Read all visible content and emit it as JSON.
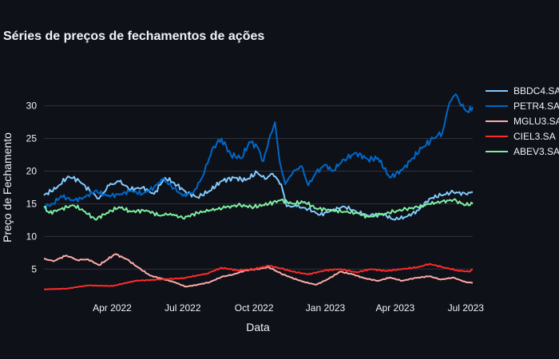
{
  "chart_data": {
    "type": "line",
    "title": "Séries de preços de fechamentos de ações",
    "xlabel": "Data",
    "ylabel": "Preço de Fechamento",
    "x_range": [
      "2022-01-03",
      "2023-07-10"
    ],
    "ylim": [
      1,
      34
    ],
    "x_ticks": [
      {
        "date": "2022-04-01",
        "label": "Apr 2022"
      },
      {
        "date": "2022-07-01",
        "label": "Jul 2022"
      },
      {
        "date": "2022-10-01",
        "label": "Oct 2022"
      },
      {
        "date": "2023-01-01",
        "label": "Jan 2023"
      },
      {
        "date": "2023-04-01",
        "label": "Apr 2023"
      },
      {
        "date": "2023-07-01",
        "label": "Jul 2023"
      }
    ],
    "y_ticks": [
      5,
      10,
      15,
      20,
      25,
      30
    ],
    "grid": true,
    "legend_position": "right",
    "series": [
      {
        "name": "BBDC4.SA",
        "color": "#83c9ff",
        "points": [
          [
            "2022-01-03",
            16.3
          ],
          [
            "2022-01-20",
            17.5
          ],
          [
            "2022-02-03",
            19.2
          ],
          [
            "2022-02-17",
            18.6
          ],
          [
            "2022-03-03",
            17.0
          ],
          [
            "2022-03-15",
            15.8
          ],
          [
            "2022-03-28",
            17.8
          ],
          [
            "2022-04-10",
            18.4
          ],
          [
            "2022-04-25",
            17.2
          ],
          [
            "2022-05-10",
            17.5
          ],
          [
            "2022-05-25",
            16.5
          ],
          [
            "2022-06-08",
            19.0
          ],
          [
            "2022-06-20",
            18.2
          ],
          [
            "2022-07-05",
            16.8
          ],
          [
            "2022-07-20",
            16.0
          ],
          [
            "2022-08-05",
            17.0
          ],
          [
            "2022-08-20",
            18.5
          ],
          [
            "2022-09-05",
            19.0
          ],
          [
            "2022-09-20",
            18.6
          ],
          [
            "2022-10-05",
            19.8
          ],
          [
            "2022-10-15",
            18.8
          ],
          [
            "2022-10-25",
            19.6
          ],
          [
            "2022-11-05",
            18.0
          ],
          [
            "2022-11-12",
            14.6
          ],
          [
            "2022-11-25",
            14.6
          ],
          [
            "2022-12-10",
            14.2
          ],
          [
            "2022-12-25",
            13.3
          ],
          [
            "2023-01-10",
            14.0
          ],
          [
            "2023-01-25",
            14.6
          ],
          [
            "2023-02-10",
            13.8
          ],
          [
            "2023-02-25",
            13.2
          ],
          [
            "2023-03-15",
            13.5
          ],
          [
            "2023-03-30",
            12.6
          ],
          [
            "2023-04-15",
            13.0
          ],
          [
            "2023-05-01",
            14.0
          ],
          [
            "2023-05-15",
            15.8
          ],
          [
            "2023-05-30",
            16.3
          ],
          [
            "2023-06-15",
            16.8
          ],
          [
            "2023-07-01",
            16.5
          ],
          [
            "2023-07-10",
            16.8
          ]
        ]
      },
      {
        "name": "PETR4.SA",
        "color": "#0068c9",
        "points": [
          [
            "2022-01-03",
            14.5
          ],
          [
            "2022-01-15",
            15.0
          ],
          [
            "2022-01-25",
            16.2
          ],
          [
            "2022-02-10",
            15.5
          ],
          [
            "2022-02-25",
            16.0
          ],
          [
            "2022-03-10",
            17.0
          ],
          [
            "2022-03-25",
            16.2
          ],
          [
            "2022-04-10",
            16.4
          ],
          [
            "2022-04-25",
            17.0
          ],
          [
            "2022-05-10",
            16.5
          ],
          [
            "2022-05-25",
            17.5
          ],
          [
            "2022-06-05",
            18.8
          ],
          [
            "2022-06-20",
            17.4
          ],
          [
            "2022-07-01",
            16.2
          ],
          [
            "2022-07-15",
            16.8
          ],
          [
            "2022-07-25",
            18.8
          ],
          [
            "2022-08-10",
            23.8
          ],
          [
            "2022-08-20",
            25.0
          ],
          [
            "2022-09-01",
            22.5
          ],
          [
            "2022-09-15",
            22.0
          ],
          [
            "2022-09-25",
            24.5
          ],
          [
            "2022-10-05",
            23.8
          ],
          [
            "2022-10-13",
            21.5
          ],
          [
            "2022-10-20",
            24.8
          ],
          [
            "2022-10-28",
            27.5
          ],
          [
            "2022-11-03",
            21.5
          ],
          [
            "2022-11-10",
            18.0
          ],
          [
            "2022-11-20",
            19.8
          ],
          [
            "2022-12-01",
            20.8
          ],
          [
            "2022-12-10",
            17.8
          ],
          [
            "2022-12-20",
            19.8
          ],
          [
            "2023-01-01",
            21.0
          ],
          [
            "2023-01-10",
            20.0
          ],
          [
            "2023-01-25",
            21.8
          ],
          [
            "2023-02-10",
            22.8
          ],
          [
            "2023-02-25",
            21.8
          ],
          [
            "2023-03-10",
            22.0
          ],
          [
            "2023-03-25",
            19.0
          ],
          [
            "2023-04-10",
            20.2
          ],
          [
            "2023-04-20",
            21.5
          ],
          [
            "2023-05-05",
            23.5
          ],
          [
            "2023-05-20",
            25.0
          ],
          [
            "2023-06-01",
            26.0
          ],
          [
            "2023-06-10",
            30.5
          ],
          [
            "2023-06-18",
            31.8
          ],
          [
            "2023-06-25",
            30.0
          ],
          [
            "2023-07-05",
            29.0
          ],
          [
            "2023-07-10",
            29.8
          ]
        ]
      },
      {
        "name": "MGLU3.SA",
        "color": "#ffabab",
        "points": [
          [
            "2022-01-03",
            6.6
          ],
          [
            "2022-01-15",
            6.2
          ],
          [
            "2022-02-01",
            7.1
          ],
          [
            "2022-02-15",
            6.4
          ],
          [
            "2022-03-01",
            6.5
          ],
          [
            "2022-03-15",
            5.6
          ],
          [
            "2022-03-25",
            6.4
          ],
          [
            "2022-04-05",
            7.3
          ],
          [
            "2022-04-20",
            6.5
          ],
          [
            "2022-05-05",
            5.2
          ],
          [
            "2022-05-20",
            4.0
          ],
          [
            "2022-06-05",
            3.5
          ],
          [
            "2022-06-20",
            3.0
          ],
          [
            "2022-07-05",
            2.3
          ],
          [
            "2022-07-20",
            2.6
          ],
          [
            "2022-08-05",
            3.0
          ],
          [
            "2022-08-20",
            3.8
          ],
          [
            "2022-09-05",
            4.2
          ],
          [
            "2022-09-20",
            4.8
          ],
          [
            "2022-10-05",
            5.0
          ],
          [
            "2022-10-20",
            5.3
          ],
          [
            "2022-11-05",
            4.3
          ],
          [
            "2022-11-20",
            3.6
          ],
          [
            "2022-12-05",
            3.0
          ],
          [
            "2022-12-20",
            2.6
          ],
          [
            "2023-01-05",
            3.5
          ],
          [
            "2023-01-20",
            4.6
          ],
          [
            "2023-02-05",
            4.2
          ],
          [
            "2023-02-20",
            3.6
          ],
          [
            "2023-03-10",
            3.2
          ],
          [
            "2023-03-25",
            3.7
          ],
          [
            "2023-04-10",
            3.2
          ],
          [
            "2023-04-25",
            3.6
          ],
          [
            "2023-05-15",
            3.9
          ],
          [
            "2023-05-30",
            3.4
          ],
          [
            "2023-06-15",
            3.7
          ],
          [
            "2023-07-01",
            3.0
          ],
          [
            "2023-07-10",
            2.9
          ]
        ]
      },
      {
        "name": "CIEL3.SA",
        "color": "#ff2b2b",
        "points": [
          [
            "2022-01-03",
            1.9
          ],
          [
            "2022-02-01",
            2.0
          ],
          [
            "2022-03-01",
            2.5
          ],
          [
            "2022-04-01",
            2.4
          ],
          [
            "2022-05-01",
            3.2
          ],
          [
            "2022-06-01",
            3.4
          ],
          [
            "2022-07-01",
            3.6
          ],
          [
            "2022-08-01",
            4.3
          ],
          [
            "2022-08-20",
            5.2
          ],
          [
            "2022-09-10",
            4.8
          ],
          [
            "2022-10-01",
            5.0
          ],
          [
            "2022-10-20",
            5.5
          ],
          [
            "2022-11-05",
            5.1
          ],
          [
            "2022-11-20",
            4.6
          ],
          [
            "2022-12-10",
            4.2
          ],
          [
            "2023-01-01",
            4.8
          ],
          [
            "2023-01-20",
            5.0
          ],
          [
            "2023-02-10",
            4.5
          ],
          [
            "2023-03-01",
            5.0
          ],
          [
            "2023-03-20",
            4.7
          ],
          [
            "2023-04-10",
            5.0
          ],
          [
            "2023-05-01",
            5.3
          ],
          [
            "2023-05-15",
            5.8
          ],
          [
            "2023-06-01",
            5.3
          ],
          [
            "2023-06-20",
            4.8
          ],
          [
            "2023-07-05",
            4.6
          ],
          [
            "2023-07-10",
            5.0
          ]
        ]
      },
      {
        "name": "ABEV3.SA",
        "color": "#7defa1",
        "points": [
          [
            "2022-01-03",
            14.5
          ],
          [
            "2022-01-10",
            13.6
          ],
          [
            "2022-01-25",
            14.2
          ],
          [
            "2022-02-10",
            14.8
          ],
          [
            "2022-02-25",
            13.8
          ],
          [
            "2022-03-10",
            12.6
          ],
          [
            "2022-03-25",
            13.6
          ],
          [
            "2022-04-10",
            14.5
          ],
          [
            "2022-04-25",
            13.8
          ],
          [
            "2022-05-15",
            14.0
          ],
          [
            "2022-06-01",
            13.2
          ],
          [
            "2022-06-15",
            13.5
          ],
          [
            "2022-07-01",
            12.8
          ],
          [
            "2022-07-20",
            13.6
          ],
          [
            "2022-08-05",
            14.0
          ],
          [
            "2022-08-25",
            14.4
          ],
          [
            "2022-09-10",
            14.8
          ],
          [
            "2022-10-01",
            14.5
          ],
          [
            "2022-10-20",
            15.0
          ],
          [
            "2022-11-05",
            15.6
          ],
          [
            "2022-11-20",
            15.0
          ],
          [
            "2022-12-05",
            15.3
          ],
          [
            "2022-12-20",
            14.3
          ],
          [
            "2023-01-10",
            14.0
          ],
          [
            "2023-01-25",
            13.8
          ],
          [
            "2023-02-10",
            13.6
          ],
          [
            "2023-02-25",
            13.0
          ],
          [
            "2023-03-15",
            13.4
          ],
          [
            "2023-03-30",
            13.8
          ],
          [
            "2023-04-15",
            14.2
          ],
          [
            "2023-04-30",
            14.5
          ],
          [
            "2023-05-15",
            15.0
          ],
          [
            "2023-05-30",
            15.3
          ],
          [
            "2023-06-15",
            15.6
          ],
          [
            "2023-07-01",
            14.8
          ],
          [
            "2023-07-10",
            15.0
          ]
        ]
      }
    ]
  }
}
